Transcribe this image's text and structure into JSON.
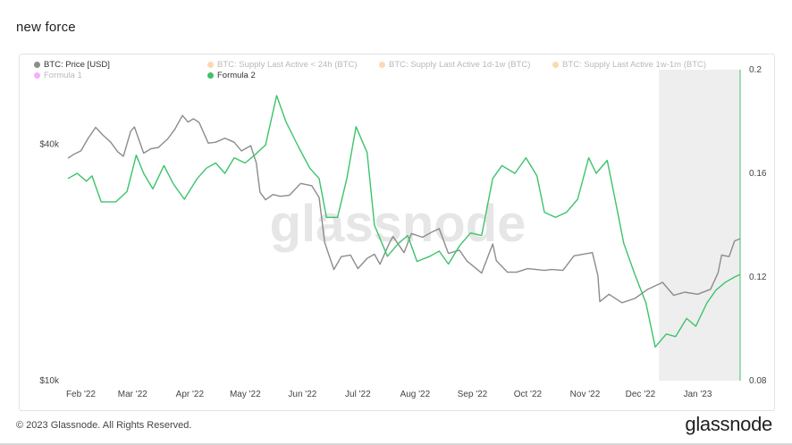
{
  "page": {
    "title": "new force",
    "copyright": "© 2023 Glassnode. All Rights Reserved.",
    "logo_text": "glassnode",
    "watermark": "glassnode"
  },
  "legend": [
    {
      "label": "BTC: Price [USD]",
      "color": "#8c8c8c",
      "active": true
    },
    {
      "label": "BTC: Supply Last Active < 24h (BTC)",
      "color": "#f7931a",
      "active": false
    },
    {
      "label": "BTC: Supply Last Active 1d-1w (BTC)",
      "color": "#f7931a",
      "active": false
    },
    {
      "label": "BTC: Supply Last Active 1w-1m (BTC)",
      "color": "#f7931a",
      "active": false
    },
    {
      "label": "Formula 1",
      "color": "#e81cff",
      "active": false
    },
    {
      "label": "Formula 2",
      "color": "#3cc36a",
      "active": true
    }
  ],
  "chart_data": {
    "type": "line",
    "x_ticks": [
      "Feb '22",
      "Mar '22",
      "Apr '22",
      "May '22",
      "Jun '22",
      "Jul '22",
      "Aug '22",
      "Sep '22",
      "Oct '22",
      "Nov '22",
      "Dec '22",
      "Jan '23"
    ],
    "x_range": [
      "2022-01-25",
      "2023-01-24"
    ],
    "y_left": {
      "label": "",
      "scale": "log",
      "ticks": [
        "$10k",
        "$40k"
      ],
      "range": [
        10000,
        62000
      ]
    },
    "y_right": {
      "label": "",
      "scale": "linear",
      "ticks": [
        "0.08",
        "0.12",
        "0.16",
        "0.2"
      ],
      "range": [
        0.08,
        0.2
      ]
    },
    "grid": false,
    "legend_position": "top-left",
    "shaded_region": {
      "from": "2022-12-11",
      "to": "2023-01-24",
      "color": "#eeeeee"
    },
    "series": [
      {
        "name": "BTC: Price [USD]",
        "axis": "left",
        "color": "#8c8c8c",
        "points": [
          [
            "2022-01-25",
            36900
          ],
          [
            "2022-01-28",
            37700
          ],
          [
            "2022-02-01",
            38500
          ],
          [
            "2022-02-05",
            41500
          ],
          [
            "2022-02-09",
            44200
          ],
          [
            "2022-02-13",
            42200
          ],
          [
            "2022-02-17",
            40600
          ],
          [
            "2022-02-21",
            38300
          ],
          [
            "2022-02-24",
            37300
          ],
          [
            "2022-02-28",
            43200
          ],
          [
            "2022-03-02",
            44300
          ],
          [
            "2022-03-07",
            38000
          ],
          [
            "2022-03-11",
            39000
          ],
          [
            "2022-03-15",
            39300
          ],
          [
            "2022-03-20",
            41300
          ],
          [
            "2022-03-24",
            43800
          ],
          [
            "2022-03-28",
            47400
          ],
          [
            "2022-03-31",
            45600
          ],
          [
            "2022-04-03",
            46500
          ],
          [
            "2022-04-06",
            45500
          ],
          [
            "2022-04-11",
            40300
          ],
          [
            "2022-04-15",
            40500
          ],
          [
            "2022-04-20",
            41500
          ],
          [
            "2022-04-25",
            40500
          ],
          [
            "2022-04-29",
            38500
          ],
          [
            "2022-05-04",
            39700
          ],
          [
            "2022-05-07",
            35900
          ],
          [
            "2022-05-09",
            30200
          ],
          [
            "2022-05-12",
            28900
          ],
          [
            "2022-05-16",
            29800
          ],
          [
            "2022-05-20",
            29500
          ],
          [
            "2022-05-25",
            29700
          ],
          [
            "2022-05-31",
            31800
          ],
          [
            "2022-06-06",
            31400
          ],
          [
            "2022-06-10",
            29300
          ],
          [
            "2022-06-13",
            22500
          ],
          [
            "2022-06-18",
            19200
          ],
          [
            "2022-06-22",
            20700
          ],
          [
            "2022-06-27",
            20900
          ],
          [
            "2022-07-01",
            19300
          ],
          [
            "2022-07-06",
            20500
          ],
          [
            "2022-07-10",
            21000
          ],
          [
            "2022-07-13",
            19800
          ],
          [
            "2022-07-18",
            22400
          ],
          [
            "2022-07-20",
            23300
          ],
          [
            "2022-07-26",
            21200
          ],
          [
            "2022-07-30",
            23700
          ],
          [
            "2022-08-05",
            23200
          ],
          [
            "2022-08-10",
            23900
          ],
          [
            "2022-08-14",
            24400
          ],
          [
            "2022-08-19",
            21100
          ],
          [
            "2022-08-25",
            21500
          ],
          [
            "2022-08-29",
            20200
          ],
          [
            "2022-09-06",
            18800
          ],
          [
            "2022-09-12",
            22300
          ],
          [
            "2022-09-14",
            20200
          ],
          [
            "2022-09-20",
            18900
          ],
          [
            "2022-09-25",
            18900
          ],
          [
            "2022-10-01",
            19300
          ],
          [
            "2022-10-10",
            19100
          ],
          [
            "2022-10-14",
            19200
          ],
          [
            "2022-10-20",
            19100
          ],
          [
            "2022-10-26",
            20800
          ],
          [
            "2022-11-05",
            21200
          ],
          [
            "2022-11-08",
            18500
          ],
          [
            "2022-11-09",
            15900
          ],
          [
            "2022-11-14",
            16600
          ],
          [
            "2022-11-21",
            15800
          ],
          [
            "2022-11-28",
            16200
          ],
          [
            "2022-12-05",
            17100
          ],
          [
            "2022-12-13",
            17800
          ],
          [
            "2022-12-19",
            16500
          ],
          [
            "2022-12-25",
            16800
          ],
          [
            "2023-01-01",
            16600
          ],
          [
            "2023-01-08",
            17100
          ],
          [
            "2023-01-12",
            18800
          ],
          [
            "2023-01-14",
            20900
          ],
          [
            "2023-01-18",
            20700
          ],
          [
            "2023-01-21",
            22700
          ],
          [
            "2023-01-24",
            23000
          ]
        ]
      },
      {
        "name": "Formula 2",
        "axis": "right",
        "color": "#3cc36a",
        "points": [
          [
            "2022-01-25",
            0.158
          ],
          [
            "2022-01-30",
            0.16
          ],
          [
            "2022-02-04",
            0.157
          ],
          [
            "2022-02-07",
            0.159
          ],
          [
            "2022-02-12",
            0.149
          ],
          [
            "2022-02-20",
            0.149
          ],
          [
            "2022-02-26",
            0.153
          ],
          [
            "2022-03-03",
            0.167
          ],
          [
            "2022-03-07",
            0.16
          ],
          [
            "2022-03-12",
            0.154
          ],
          [
            "2022-03-18",
            0.163
          ],
          [
            "2022-03-23",
            0.156
          ],
          [
            "2022-03-29",
            0.15
          ],
          [
            "2022-04-05",
            0.158
          ],
          [
            "2022-04-10",
            0.162
          ],
          [
            "2022-04-15",
            0.164
          ],
          [
            "2022-04-20",
            0.16
          ],
          [
            "2022-04-25",
            0.166
          ],
          [
            "2022-05-01",
            0.164
          ],
          [
            "2022-05-06",
            0.167
          ],
          [
            "2022-05-12",
            0.171
          ],
          [
            "2022-05-18",
            0.19
          ],
          [
            "2022-05-23",
            0.18
          ],
          [
            "2022-05-30",
            0.17
          ],
          [
            "2022-06-05",
            0.162
          ],
          [
            "2022-06-10",
            0.158
          ],
          [
            "2022-06-14",
            0.143
          ],
          [
            "2022-06-20",
            0.143
          ],
          [
            "2022-06-25",
            0.158
          ],
          [
            "2022-06-30",
            0.178
          ],
          [
            "2022-07-06",
            0.168
          ],
          [
            "2022-07-10",
            0.14
          ],
          [
            "2022-07-17",
            0.128
          ],
          [
            "2022-07-23",
            0.133
          ],
          [
            "2022-07-28",
            0.136
          ],
          [
            "2022-08-02",
            0.126
          ],
          [
            "2022-08-09",
            0.128
          ],
          [
            "2022-08-14",
            0.13
          ],
          [
            "2022-08-19",
            0.125
          ],
          [
            "2022-08-25",
            0.132
          ],
          [
            "2022-08-31",
            0.137
          ],
          [
            "2022-09-06",
            0.136
          ],
          [
            "2022-09-12",
            0.158
          ],
          [
            "2022-09-17",
            0.163
          ],
          [
            "2022-09-24",
            0.16
          ],
          [
            "2022-09-30",
            0.166
          ],
          [
            "2022-10-06",
            0.159
          ],
          [
            "2022-10-10",
            0.145
          ],
          [
            "2022-10-16",
            0.143
          ],
          [
            "2022-10-22",
            0.145
          ],
          [
            "2022-10-28",
            0.15
          ],
          [
            "2022-11-03",
            0.166
          ],
          [
            "2022-11-07",
            0.16
          ],
          [
            "2022-11-13",
            0.165
          ],
          [
            "2022-11-17",
            0.151
          ],
          [
            "2022-11-22",
            0.133
          ],
          [
            "2022-11-28",
            0.121
          ],
          [
            "2022-12-04",
            0.11
          ],
          [
            "2022-12-09",
            0.093
          ],
          [
            "2022-12-15",
            0.098
          ],
          [
            "2022-12-20",
            0.097
          ],
          [
            "2022-12-26",
            0.104
          ],
          [
            "2022-12-31",
            0.101
          ],
          [
            "2023-01-06",
            0.11
          ],
          [
            "2023-01-11",
            0.115
          ],
          [
            "2023-01-16",
            0.118
          ],
          [
            "2023-01-21",
            0.12
          ],
          [
            "2023-01-24",
            0.121
          ]
        ]
      }
    ]
  }
}
